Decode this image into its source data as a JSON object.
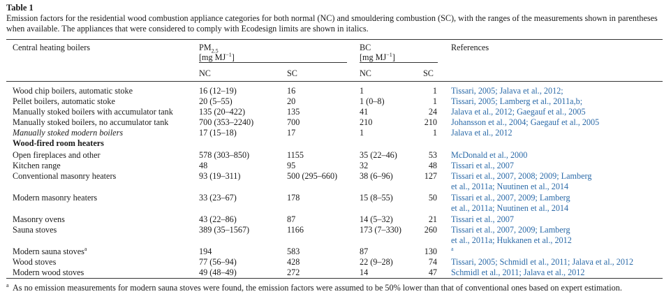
{
  "table": {
    "label": "Table 1",
    "caption": "Emission factors for the residential wood combustion appliance categories for both normal (NC) and smouldering combustion (SC), with the ranges of the measurements shown in parentheses when available. The appliances that were considered to comply with Ecodesign limits are shown in italics.",
    "headers": {
      "category": "Central heating boilers",
      "pm_main": "PM",
      "pm_sub": "2.5",
      "pm_unit_pre": "[mg MJ",
      "pm_unit_sup": "−1",
      "pm_unit_post": "]",
      "bc_main": "BC",
      "bc_unit_pre": "[mg MJ",
      "bc_unit_sup": "−1",
      "bc_unit_post": "]",
      "references": "References",
      "nc1": "NC",
      "sc1": "SC",
      "nc2": "NC",
      "sc2": "SC"
    },
    "rows": [
      {
        "name": "Wood chip boilers, automatic stoke",
        "pm_nc": "16 (12–19)",
        "pm_sc": "16",
        "bc_nc": "1",
        "bc_sc": "1",
        "ref1": "Tissari, 2005; Jalava et al., 2012;",
        "ref2": ""
      },
      {
        "name": "Pellet boilers, automatic stoke",
        "pm_nc": "20 (5–55)",
        "pm_sc": "20",
        "bc_nc": "1 (0–8)",
        "bc_sc": "1",
        "ref1": "Tissari, 2005; Lamberg et al., 2011a,b;",
        "ref2": ""
      },
      {
        "name": "Manually stoked boilers with accumulator tank",
        "pm_nc": "135 (20–422)",
        "pm_sc": "135",
        "bc_nc": "41",
        "bc_sc": "24",
        "ref1": "Jalava et al., 2012; Gaegauf et al., 2005",
        "ref2": ""
      },
      {
        "name": "Manually stoked boilers, no accumulator tank",
        "pm_nc": "700 (353–2240)",
        "pm_sc": "700",
        "bc_nc": "210",
        "bc_sc": "210",
        "ref1": "Johansson et al., 2004; Gaegauf et al., 2005",
        "ref2": ""
      },
      {
        "name": "Manually stoked modern boilers",
        "pm_nc": "17 (15–18)",
        "pm_sc": "17",
        "bc_nc": "1",
        "bc_sc": "1",
        "ref1": "Jalava et al., 2012",
        "ref2": ""
      },
      {
        "name": "Wood-fired room heaters",
        "pm_nc": "",
        "pm_sc": "",
        "bc_nc": "",
        "bc_sc": "",
        "ref1": "",
        "ref2": ""
      },
      {
        "name": "Open fireplaces and other",
        "pm_nc": "578 (303–850)",
        "pm_sc": "1155",
        "bc_nc": "35 (22–46)",
        "bc_sc": "53",
        "ref1": "McDonald et al., 2000",
        "ref2": ""
      },
      {
        "name": "Kitchen range",
        "pm_nc": "48",
        "pm_sc": "95",
        "bc_nc": "32",
        "bc_sc": "48",
        "ref1": "Tissari et al., 2007",
        "ref2": ""
      },
      {
        "name": "Conventional masonry heaters",
        "pm_nc": "93 (19–311)",
        "pm_sc": "500 (295–660)",
        "bc_nc": "38 (6–96)",
        "bc_sc": "127",
        "ref1": "Tissari et al., 2007, 2008; 2009; Lamberg",
        "ref2": "et al., 2011a; Nuutinen et al., 2014"
      },
      {
        "name": "Modern masonry heaters",
        "pm_nc": "33 (23–67)",
        "pm_sc": "178",
        "bc_nc": "15 (8–55)",
        "bc_sc": "50",
        "ref1": "Tissari et al., 2007, 2009; Lamberg",
        "ref2": "et al., 2011a; Nuutinen et al., 2014"
      },
      {
        "name": "Masonry ovens",
        "pm_nc": "43 (22–86)",
        "pm_sc": "87",
        "bc_nc": "14 (5–32)",
        "bc_sc": "21",
        "ref1": "Tissari et al., 2007",
        "ref2": ""
      },
      {
        "name": "Sauna stoves",
        "pm_nc": "389 (35–1567)",
        "pm_sc": "1166",
        "bc_nc": "173 (7–330)",
        "bc_sc": "260",
        "ref1": "Tissari et al., 2007, 2009; Lamberg",
        "ref2": "et al., 2011a; Hukkanen et al., 2012"
      },
      {
        "name": "Modern sauna stoves",
        "name_sup": "a",
        "pm_nc": "194",
        "pm_sc": "583",
        "bc_nc": "87",
        "bc_sc": "130",
        "ref1": "a",
        "ref2": ""
      },
      {
        "name": "Wood stoves",
        "pm_nc": "77 (56–94)",
        "pm_sc": "428",
        "bc_nc": "22 (9–28)",
        "bc_sc": "74",
        "ref1": "Tissari, 2005; Schmidl et al., 2011; Jalava et al., 2012",
        "ref2": ""
      },
      {
        "name": "Modern wood stoves",
        "pm_nc": "49 (48–49)",
        "pm_sc": "272",
        "bc_nc": "14",
        "bc_sc": "47",
        "ref1": "Schmidl et al., 2011; Jalava et al., 2012",
        "ref2": ""
      }
    ],
    "footnote_mark": "a",
    "footnote": "As no emission measurements for modern sauna stoves were found, the emission factors were assumed to be 50% lower than that of conventional ones based on expert estimation."
  }
}
